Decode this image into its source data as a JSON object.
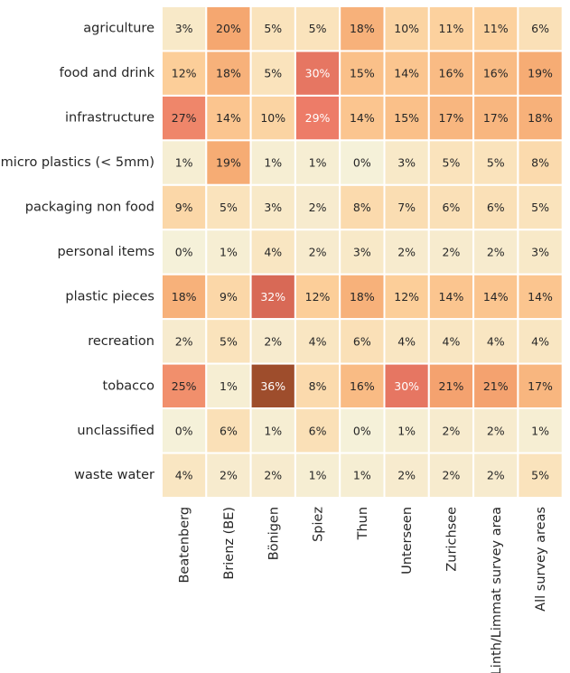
{
  "chart_data": {
    "type": "heatmap",
    "title": "",
    "xlabel": "",
    "ylabel": "",
    "value_format": "percent",
    "rows": [
      "agriculture",
      "food and drink",
      "infrastructure",
      "micro plastics (< 5mm)",
      "packaging non food",
      "personal items",
      "plastic pieces",
      "recreation",
      "tobacco",
      "unclassified",
      "waste water"
    ],
    "columns": [
      "Beatenberg",
      "Brienz (BE)",
      "Bönigen",
      "Spiez",
      "Thun",
      "Unterseen",
      "Zurichsee",
      "Linth/Limmat survey area",
      "All survey areas"
    ],
    "values": [
      [
        3,
        20,
        5,
        5,
        18,
        10,
        11,
        11,
        6
      ],
      [
        12,
        18,
        5,
        30,
        15,
        14,
        16,
        16,
        19
      ],
      [
        27,
        14,
        10,
        29,
        14,
        15,
        17,
        17,
        18
      ],
      [
        1,
        19,
        1,
        1,
        0,
        3,
        5,
        5,
        8
      ],
      [
        9,
        5,
        3,
        2,
        8,
        7,
        6,
        6,
        5
      ],
      [
        0,
        1,
        4,
        2,
        3,
        2,
        2,
        2,
        3
      ],
      [
        18,
        9,
        32,
        12,
        18,
        12,
        14,
        14,
        14
      ],
      [
        2,
        5,
        2,
        4,
        6,
        4,
        4,
        4,
        4
      ],
      [
        25,
        1,
        36,
        8,
        16,
        30,
        21,
        21,
        17
      ],
      [
        0,
        6,
        1,
        6,
        0,
        1,
        2,
        2,
        1
      ],
      [
        4,
        2,
        2,
        1,
        1,
        2,
        2,
        2,
        5
      ]
    ],
    "colorbar": false,
    "grid": false
  }
}
